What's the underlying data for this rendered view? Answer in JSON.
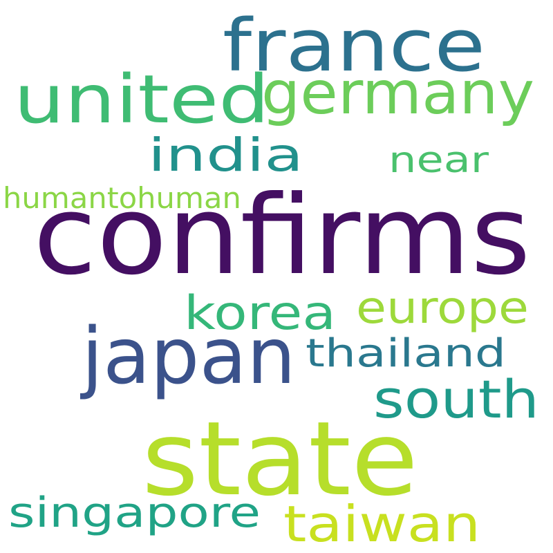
{
  "words": [
    {
      "id": "confirms",
      "text": "confirms",
      "color": "#440f62"
    },
    {
      "id": "state",
      "text": "state",
      "color": "#b6de2b"
    },
    {
      "id": "japan",
      "text": "japan",
      "color": "#3b528b"
    },
    {
      "id": "france",
      "text": "france",
      "color": "#2c718e"
    },
    {
      "id": "united",
      "text": "united",
      "color": "#3fbc73"
    },
    {
      "id": "germany",
      "text": "germany",
      "color": "#6ccd5a"
    },
    {
      "id": "south",
      "text": "south",
      "color": "#1f9a8a"
    },
    {
      "id": "korea",
      "text": "korea",
      "color": "#35b779"
    },
    {
      "id": "taiwan",
      "text": "taiwan",
      "color": "#c8e020"
    },
    {
      "id": "europe",
      "text": "europe",
      "color": "#9dd93b"
    },
    {
      "id": "india",
      "text": "india",
      "color": "#21918c"
    },
    {
      "id": "singapore",
      "text": "singapore",
      "color": "#20a386"
    },
    {
      "id": "thailand",
      "text": "thailand",
      "color": "#2a788e"
    },
    {
      "id": "near",
      "text": "near",
      "color": "#4ac16d"
    },
    {
      "id": "humantohuman",
      "text": "humantohuman",
      "color": "#8bd646"
    }
  ]
}
